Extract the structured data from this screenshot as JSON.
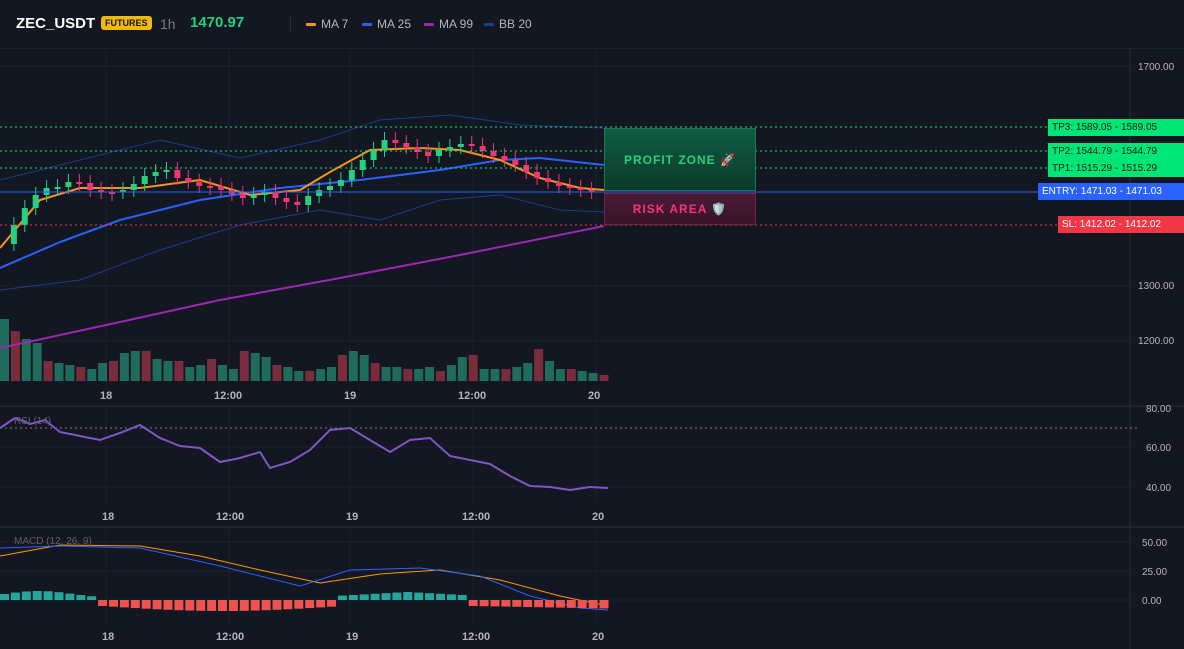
{
  "header": {
    "symbol": "ZEC_USDT",
    "badge": "FUTURES",
    "timeframe": "1h",
    "last_price": "1470.97",
    "legend": [
      {
        "label": "MA 7",
        "color": "#f7931a"
      },
      {
        "label": "MA 25",
        "color": "#2962ff"
      },
      {
        "label": "MA 99",
        "color": "#9c27b0"
      },
      {
        "label": "BB 20",
        "color": "#1e3a8a"
      }
    ]
  },
  "main_chart": {
    "price_axis": [
      "1700.00",
      "1300.00",
      "1200.00"
    ],
    "time_axis": [
      "18",
      "12:00",
      "19",
      "12:00",
      "20"
    ],
    "zones": {
      "profit": "PROFIT ZONE 🚀",
      "risk": "RISK AREA 🛡️"
    },
    "levels": [
      {
        "label": "TP3: 1589.05",
        "value": "1589.05",
        "color": "#00e676"
      },
      {
        "label": "TP2: 1544.79",
        "value": "1544.79",
        "color": "#00e676"
      },
      {
        "label": "TP1: 1515.29",
        "value": "1515.29",
        "color": "#00e676"
      },
      {
        "label": "ENTRY: 1471.03",
        "value": "1471.03",
        "color": "#2962ff"
      },
      {
        "label": "SL: 1412.02",
        "value": "1412.02",
        "color": "#f23645"
      }
    ]
  },
  "rsi_panel": {
    "label": "RSI (14)",
    "axis": [
      "80.00",
      "60.00",
      "40.00"
    ],
    "time_axis": [
      "18",
      "12:00",
      "19",
      "12:00",
      "20"
    ]
  },
  "macd_panel": {
    "label": "MACD (12, 26, 9)",
    "axis": [
      "50.00",
      "25.00",
      "0.00"
    ],
    "time_axis": [
      "18",
      "12:00",
      "19",
      "12:00",
      "20"
    ]
  },
  "colors": {
    "up": "#26a69a",
    "down": "#ef5350",
    "ma7": "#f7931a",
    "ma25": "#2962ff",
    "ma99": "#9c27b0",
    "bb": "#1e3a8a",
    "rsi": "#7e57c2"
  }
}
